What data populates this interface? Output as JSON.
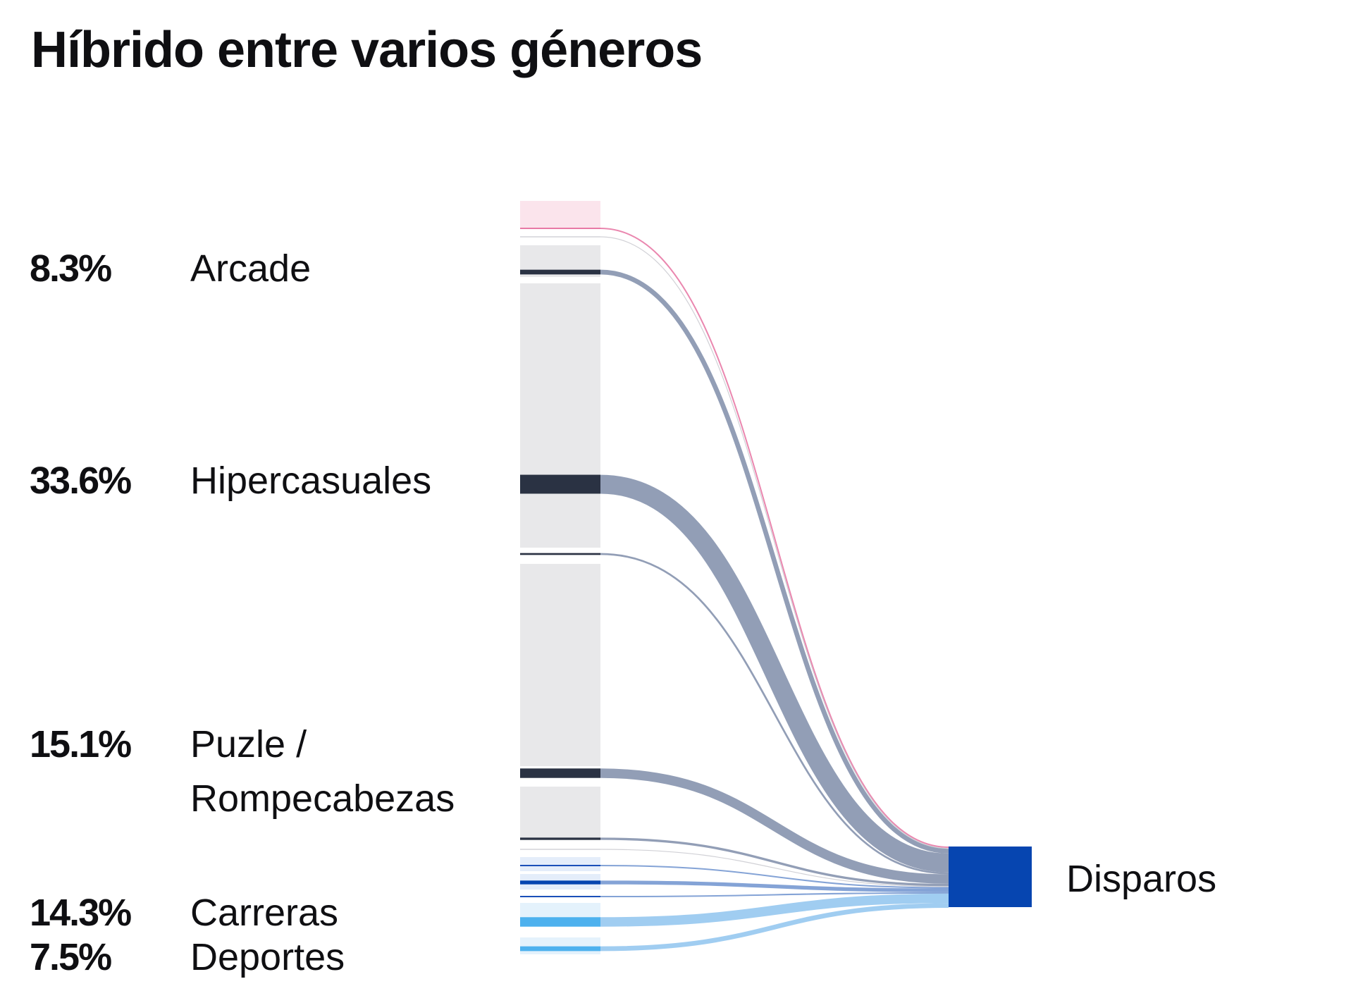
{
  "title": "Híbrido entre varios géneros",
  "chart_data": {
    "type": "sankey",
    "title": "Híbrido entre varios géneros",
    "target": {
      "label": "Disparos",
      "color": "#0645b0"
    },
    "source_labels": [
      {
        "percent": "8.3%",
        "label": "Arcade"
      },
      {
        "percent": "33.6%",
        "label": "Hipercasuales"
      },
      {
        "percent": "15.1%",
        "label": "Puzle /",
        "label_line2": "Rompecabezas"
      },
      {
        "percent": "14.3%",
        "label": "Carreras"
      },
      {
        "percent": "7.5%",
        "label": "Deportes"
      }
    ],
    "flows": [
      {
        "group": "pink-top",
        "share": 0.3,
        "color": "#e87aa6"
      },
      {
        "group": "pink-top",
        "share": 0.1,
        "color": "#c9c9cf"
      },
      {
        "group": "Arcade",
        "share": 1.0,
        "color": "#2a3243"
      },
      {
        "group": "Hipercasuales",
        "share": 4.0,
        "color": "#2a3243"
      },
      {
        "group": "Hipercasuales",
        "share": 0.4,
        "color": "#2a3243"
      },
      {
        "group": "Puzle / Rompecabezas",
        "share": 2.0,
        "color": "#2a3243"
      },
      {
        "group": "Puzle / Rompecabezas",
        "share": 0.5,
        "color": "#2a3243"
      },
      {
        "group": "Puzle / Rompecabezas",
        "share": 0.1,
        "color": "#c9c9cf"
      },
      {
        "group": "Carreras",
        "share": 0.3,
        "color": "#1a4fb8"
      },
      {
        "group": "Carreras",
        "share": 0.8,
        "color": "#0645b0"
      },
      {
        "group": "Carreras",
        "share": 0.3,
        "color": "#1a4fb8"
      },
      {
        "group": "Carreras",
        "share": 2.0,
        "color": "#4db1ee"
      },
      {
        "group": "Deportes",
        "share": 1.0,
        "color": "#4db1ee"
      }
    ]
  }
}
